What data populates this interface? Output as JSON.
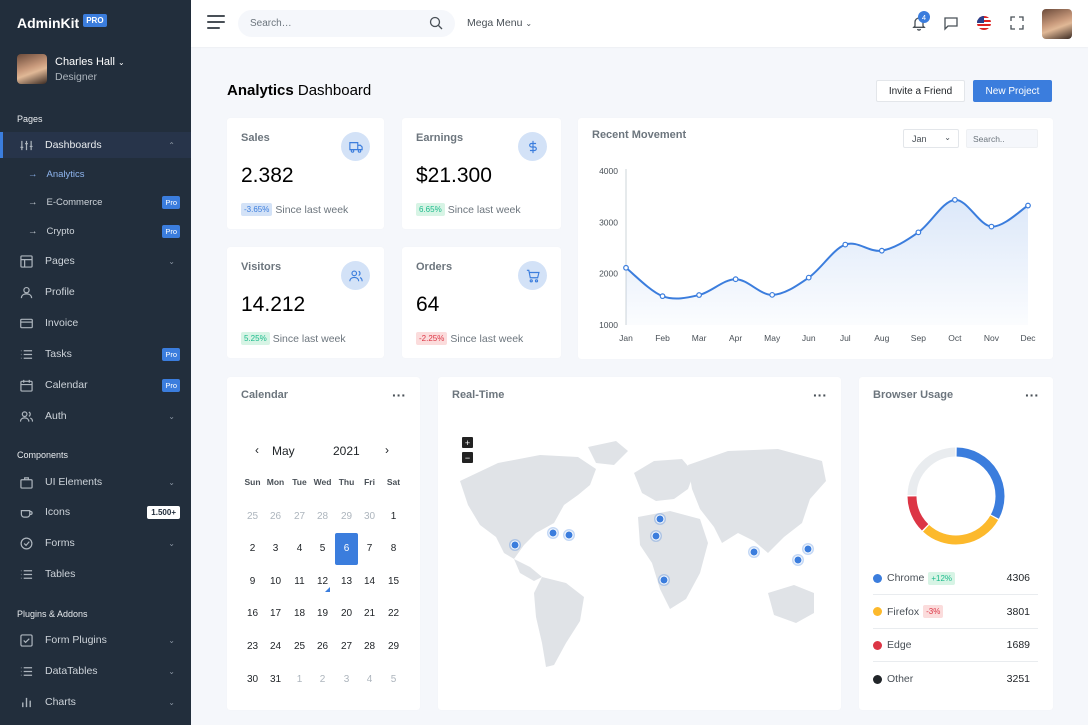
{
  "brand": {
    "name": "AdminKit",
    "badge": "PRO"
  },
  "user": {
    "name": "Charles Hall",
    "role": "Designer"
  },
  "sidebar": {
    "sections": [
      "Pages",
      "Components",
      "Plugins & Addons"
    ],
    "items": [
      {
        "label": "Dashboards",
        "icon": "sliders-icon"
      },
      {
        "label": "Pages",
        "icon": "layout-icon"
      },
      {
        "label": "Profile",
        "icon": "user-icon"
      },
      {
        "label": "Invoice",
        "icon": "credit-card-icon"
      },
      {
        "label": "Tasks",
        "icon": "list-icon",
        "badge": "Pro"
      },
      {
        "label": "Calendar",
        "icon": "calendar-icon",
        "badge": "Pro"
      },
      {
        "label": "Auth",
        "icon": "users-icon"
      },
      {
        "label": "UI Elements",
        "icon": "briefcase-icon"
      },
      {
        "label": "Icons",
        "icon": "coffee-icon",
        "badge": "1.500+"
      },
      {
        "label": "Forms",
        "icon": "check-circle-icon"
      },
      {
        "label": "Tables",
        "icon": "list-icon"
      },
      {
        "label": "Form Plugins",
        "icon": "check-square-icon"
      },
      {
        "label": "DataTables",
        "icon": "list-icon"
      },
      {
        "label": "Charts",
        "icon": "bar-chart-icon"
      }
    ],
    "sub_items": [
      {
        "label": "Analytics"
      },
      {
        "label": "E-Commerce",
        "badge": "Pro"
      },
      {
        "label": "Crypto",
        "badge": "Pro"
      }
    ]
  },
  "topbar": {
    "search_placeholder": "Search…",
    "mega_menu": "Mega Menu",
    "notifications_count": "4"
  },
  "page": {
    "title_bold": "Analytics",
    "title_rest": "Dashboard",
    "invite_label": "Invite a Friend",
    "new_project_label": "New Project"
  },
  "stats": [
    {
      "title": "Sales",
      "value": "2.382",
      "change": "-3.65%",
      "since": "Since last week",
      "icon": "truck-icon"
    },
    {
      "title": "Earnings",
      "value": "$21.300",
      "change": "6.65%",
      "since": "Since last week",
      "icon": "dollar-icon"
    },
    {
      "title": "Visitors",
      "value": "14.212",
      "change": "5.25%",
      "since": "Since last week",
      "icon": "users-icon"
    },
    {
      "title": "Orders",
      "value": "64",
      "change": "-2.25%",
      "since": "Since last week",
      "icon": "cart-icon"
    }
  ],
  "movement": {
    "title": "Recent Movement",
    "select_value": "Jan",
    "search_placeholder": "Search.."
  },
  "chart_data": {
    "type": "line",
    "title": "Recent Movement",
    "categories": [
      "Jan",
      "Feb",
      "Mar",
      "Apr",
      "May",
      "Jun",
      "Jul",
      "Aug",
      "Sep",
      "Oct",
      "Nov",
      "Dec"
    ],
    "series": [
      {
        "values": [
          2115,
          1562,
          1584,
          1892,
          1587,
          1923,
          2566,
          2448,
          2805,
          3438,
          2917,
          3327
        ]
      }
    ],
    "yticks": [
      "4000",
      "3000",
      "2000",
      "1000"
    ],
    "ylim": [
      1000,
      4000
    ],
    "color": "#3b7ddd"
  },
  "calendar": {
    "title": "Calendar",
    "month": "May",
    "year": "2021",
    "dows": [
      "Sun",
      "Mon",
      "Tue",
      "Wed",
      "Thu",
      "Fri",
      "Sat"
    ],
    "weeks": [
      [
        "25",
        "26",
        "27",
        "28",
        "29",
        "30",
        "1"
      ],
      [
        "2",
        "3",
        "4",
        "5",
        "6",
        "7",
        "8"
      ],
      [
        "9",
        "10",
        "11",
        "12",
        "13",
        "14",
        "15"
      ],
      [
        "16",
        "17",
        "18",
        "19",
        "20",
        "21",
        "22"
      ],
      [
        "23",
        "24",
        "25",
        "26",
        "27",
        "28",
        "29"
      ],
      [
        "30",
        "31",
        "1",
        "2",
        "3",
        "4",
        "5"
      ]
    ]
  },
  "realtime": {
    "title": "Real-Time"
  },
  "browser": {
    "title": "Browser Usage",
    "rows": [
      {
        "name": "Chrome",
        "change": "+12%",
        "value": "4306",
        "color": "#3b7ddd"
      },
      {
        "name": "Firefox",
        "change": "-3%",
        "value": "3801",
        "color": "#fcb92c"
      },
      {
        "name": "Edge",
        "value": "1689",
        "color": "#dc3545"
      },
      {
        "name": "Other",
        "value": "3251",
        "color": "#212529"
      }
    ]
  }
}
